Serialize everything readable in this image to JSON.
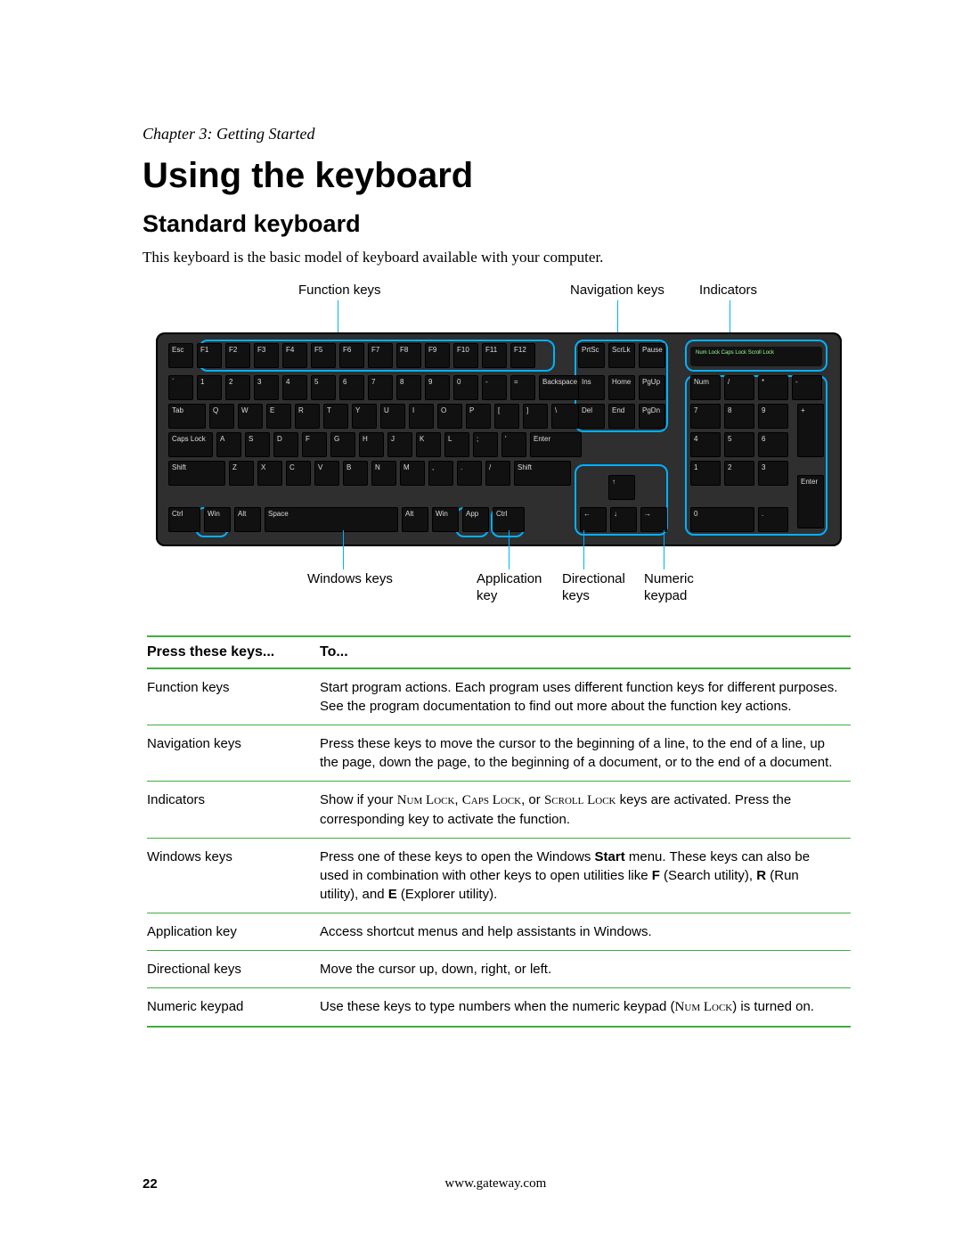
{
  "chapter": "Chapter 3: Getting Started",
  "h1": "Using the keyboard",
  "h2": "Standard keyboard",
  "intro": "This keyboard is the basic model of keyboard available with your computer.",
  "diagram": {
    "top_labels": {
      "function": "Function keys",
      "navigation": "Navigation keys",
      "indicators": "Indicators"
    },
    "bottom_labels": {
      "windows": "Windows keys",
      "application": "Application key",
      "directional": "Directional keys",
      "numeric": "Numeric keypad"
    },
    "colors": {
      "callout": "#00b1ff",
      "keyboard_body": "#2f2f2f",
      "key_bg": "#111111",
      "key_fg": "#dddddd"
    },
    "keyboard_rows": {
      "r0": [
        "Esc",
        "F1",
        "F2",
        "F3",
        "F4",
        "F5",
        "F6",
        "F7",
        "F8",
        "F9",
        "F10",
        "F11",
        "F12"
      ],
      "r0nav": [
        "PrtSc",
        "ScrLk",
        "Pause"
      ],
      "ind": "Num Lock  Caps Lock  Scroll Lock",
      "r1": [
        "`",
        "1",
        "2",
        "3",
        "4",
        "5",
        "6",
        "7",
        "8",
        "9",
        "0",
        "-",
        "=",
        "Backspace"
      ],
      "r1nav": [
        "Ins",
        "Home",
        "PgUp"
      ],
      "r1num": [
        "Num",
        "/",
        "*",
        "-"
      ],
      "r2": [
        "Tab",
        "Q",
        "W",
        "E",
        "R",
        "T",
        "Y",
        "U",
        "I",
        "O",
        "P",
        "[",
        "]",
        "\\"
      ],
      "r2nav": [
        "Del",
        "End",
        "PgDn"
      ],
      "r2num": [
        "7",
        "8",
        "9"
      ],
      "r3": [
        "Caps Lock",
        "A",
        "S",
        "D",
        "F",
        "G",
        "H",
        "J",
        "K",
        "L",
        ";",
        "'",
        "Enter"
      ],
      "r3num": [
        "4",
        "5",
        "6"
      ],
      "r4": [
        "Shift",
        "Z",
        "X",
        "C",
        "V",
        "B",
        "N",
        "M",
        ",",
        ".",
        "/",
        "Shift"
      ],
      "r4arrow": [
        "↑"
      ],
      "r4num": [
        "1",
        "2",
        "3"
      ],
      "r5": [
        "Ctrl",
        "Win",
        "Alt",
        "Space",
        "Alt",
        "Win",
        "App",
        "Ctrl"
      ],
      "r5arrow": [
        "←",
        "↓",
        "→"
      ],
      "r5num": [
        "0",
        "."
      ]
    }
  },
  "table": {
    "header": {
      "col1": "Press these keys...",
      "col2": "To..."
    },
    "accent_color_hex": "#3fae3f",
    "rows": [
      {
        "k": "Function keys",
        "v": "Start program actions. Each program uses different function keys for different purposes. See the program documentation to find out more about the function key actions."
      },
      {
        "k": "Navigation keys",
        "v": "Press these keys to move the cursor to the beginning of a line, to the end of a line, up the page, down the page, to the beginning of a document, or to the end of a document."
      },
      {
        "k": "Indicators",
        "v_html": "Show if your <span class='sc'>Num Lock</span>, <span class='sc'>Caps Lock</span>, or <span class='sc'>Scroll Lock</span> keys are activated. Press the corresponding key to activate the function."
      },
      {
        "k": "Windows keys",
        "v_html": "Press one of these keys to open the Windows <b>Start</b> menu. These keys can also be used in combination with other keys to open utilities like <b>F</b> (Search utility), <b>R</b> (Run utility), and <b>E</b> (Explorer utility)."
      },
      {
        "k": "Application key",
        "v": "Access shortcut menus and help assistants in Windows."
      },
      {
        "k": "Directional keys",
        "v": "Move the cursor up, down, right, or left."
      },
      {
        "k": "Numeric keypad",
        "v_html": "Use these keys to type numbers when the numeric keypad (<span class='sc'>Num Lock</span>) is turned on."
      }
    ]
  },
  "footer": {
    "page": "22",
    "url": "www.gateway.com"
  }
}
